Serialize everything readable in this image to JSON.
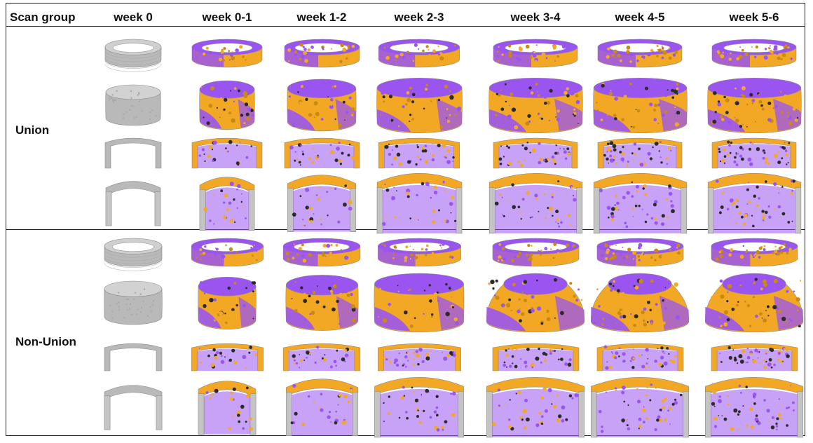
{
  "figure": {
    "header": {
      "scan_group": "Scan group",
      "weeks": [
        "week 0",
        "week 0-1",
        "week 1-2",
        "week 2-3",
        "week 3-4",
        "week 4-5",
        "week 5-6"
      ]
    },
    "groups": [
      {
        "label": "Union",
        "outcome": "union"
      },
      {
        "label": "Non-Union",
        "outcome": "nonunion"
      }
    ],
    "row_views": [
      "top ring",
      "defect body",
      "cut-away top",
      "cut-away body"
    ],
    "colors": {
      "bone_grey": "#b9b9b9",
      "formation_orange": "#f2a824",
      "resorption_purple": "#9a55f0",
      "border": "#222222"
    }
  }
}
